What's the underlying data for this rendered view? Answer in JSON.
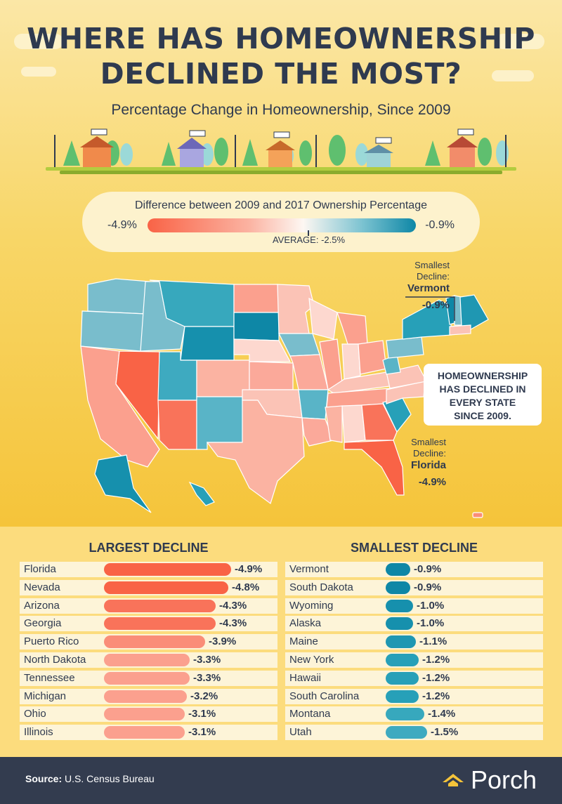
{
  "title": {
    "line1": "WHERE HAS HOMEOWNERSHIP",
    "line2": "DECLINED THE MOST?"
  },
  "subtitle": "Percentage Change in Homeownership, Since 2009",
  "legend": {
    "title": "Difference between 2009 and 2017 Ownership Percentage",
    "min_label": "-4.9%",
    "max_label": "-0.9%",
    "average_label": "AVERAGE: -2.5%",
    "min_color": "#f96346",
    "max_color": "#0e87a6"
  },
  "map": {
    "annotation_top": {
      "line1": "Smallest",
      "line2": "Decline:",
      "state": "Vermont",
      "value": "-0.9%"
    },
    "annotation_bottom": {
      "line1": "Smallest",
      "line2": "Decline:",
      "state": "Florida",
      "value": "-4.9%"
    },
    "callout": {
      "line1": "HOMEOWNERSHIP",
      "line2": "HAS DECLINED IN",
      "line3": "EVERY STATE",
      "line4": "SINCE 2009."
    }
  },
  "chart_data": [
    {
      "type": "bar",
      "title": "LARGEST DECLINE",
      "categories": [
        "Florida",
        "Nevada",
        "Arizona",
        "Georgia",
        "Puerto Rico",
        "North Dakota",
        "Tennessee",
        "Michigan",
        "Ohio",
        "Illinois"
      ],
      "values": [
        -4.9,
        -4.8,
        -4.3,
        -4.3,
        -3.9,
        -3.3,
        -3.3,
        -3.2,
        -3.1,
        -3.1
      ],
      "value_labels": [
        "-4.9%",
        "-4.8%",
        "-4.3%",
        "-4.3%",
        "-3.9%",
        "-3.3%",
        "-3.3%",
        "-3.2%",
        "-3.1%",
        "-3.1%"
      ],
      "colors": [
        "#f96346",
        "#f96346",
        "#f9735a",
        "#f9735a",
        "#fa8d78",
        "#fba08e",
        "#fba08e",
        "#fba08e",
        "#fba08e",
        "#fba08e"
      ]
    },
    {
      "type": "bar",
      "title": "SMALLEST DECLINE",
      "categories": [
        "Vermont",
        "South Dakota",
        "Wyoming",
        "Alaska",
        "Maine",
        "New York",
        "Hawaii",
        "South Carolina",
        "Montana",
        "Utah"
      ],
      "values": [
        -0.9,
        -0.9,
        -1.0,
        -1.0,
        -1.1,
        -1.2,
        -1.2,
        -1.2,
        -1.4,
        -1.5
      ],
      "value_labels": [
        "-0.9%",
        "-0.9%",
        "-1.0%",
        "-1.0%",
        "-1.1%",
        "-1.2%",
        "-1.2%",
        "-1.2%",
        "-1.4%",
        "-1.5%"
      ],
      "colors": [
        "#0e87a6",
        "#0e87a6",
        "#1690ad",
        "#1690ad",
        "#1f97b2",
        "#27a0b8",
        "#27a0b8",
        "#27a0b8",
        "#37a8bd",
        "#3eaac0"
      ]
    }
  ],
  "footer": {
    "source_label": "Source:",
    "source_text": "U.S. Census Bureau",
    "brand": "Porch"
  }
}
